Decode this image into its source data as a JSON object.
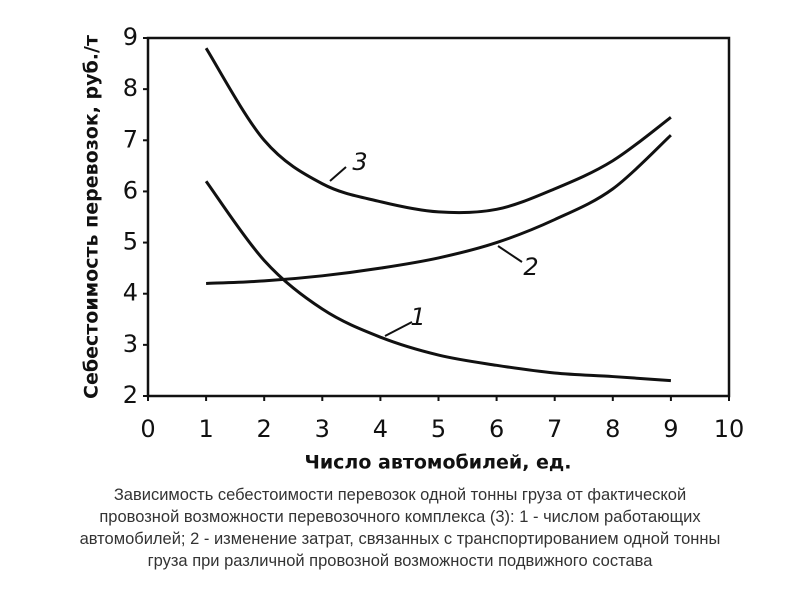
{
  "chart_data": {
    "type": "line",
    "y_label": "Себестоимость перевозок, руб./т",
    "x_label": "Число автомобилей, ед.",
    "x": [
      1,
      2,
      3,
      4,
      5,
      6,
      7,
      8,
      9
    ],
    "series": [
      {
        "name": "1",
        "color": "#111111",
        "values": [
          6.2,
          4.65,
          3.7,
          3.15,
          2.8,
          2.6,
          2.45,
          2.38,
          2.3
        ]
      },
      {
        "name": "2",
        "color": "#111111",
        "values": [
          4.2,
          4.25,
          4.35,
          4.5,
          4.7,
          5.0,
          5.45,
          6.05,
          7.1
        ]
      },
      {
        "name": "3",
        "color": "#111111",
        "values": [
          8.8,
          7.0,
          6.15,
          5.8,
          5.6,
          5.65,
          6.05,
          6.6,
          7.45
        ]
      }
    ],
    "xlim": [
      0,
      10
    ],
    "xticks": [
      0,
      1,
      2,
      3,
      4,
      5,
      6,
      7,
      8,
      9,
      10
    ],
    "ylim": [
      2,
      9
    ],
    "yticks": [
      2,
      3,
      4,
      5,
      6,
      7,
      8,
      9
    ],
    "grid": false
  },
  "caption": [
    "Зависимость себестоимости перевозок одной тонны груза от фактической",
    "провозной возможности перевозочного комплекса (3): 1 - числом работающих",
    "автомобилей; 2 - изменение затрат, связанных с транспортированием одной тонны",
    "груза при различной провозной возможности подвижного состава"
  ]
}
